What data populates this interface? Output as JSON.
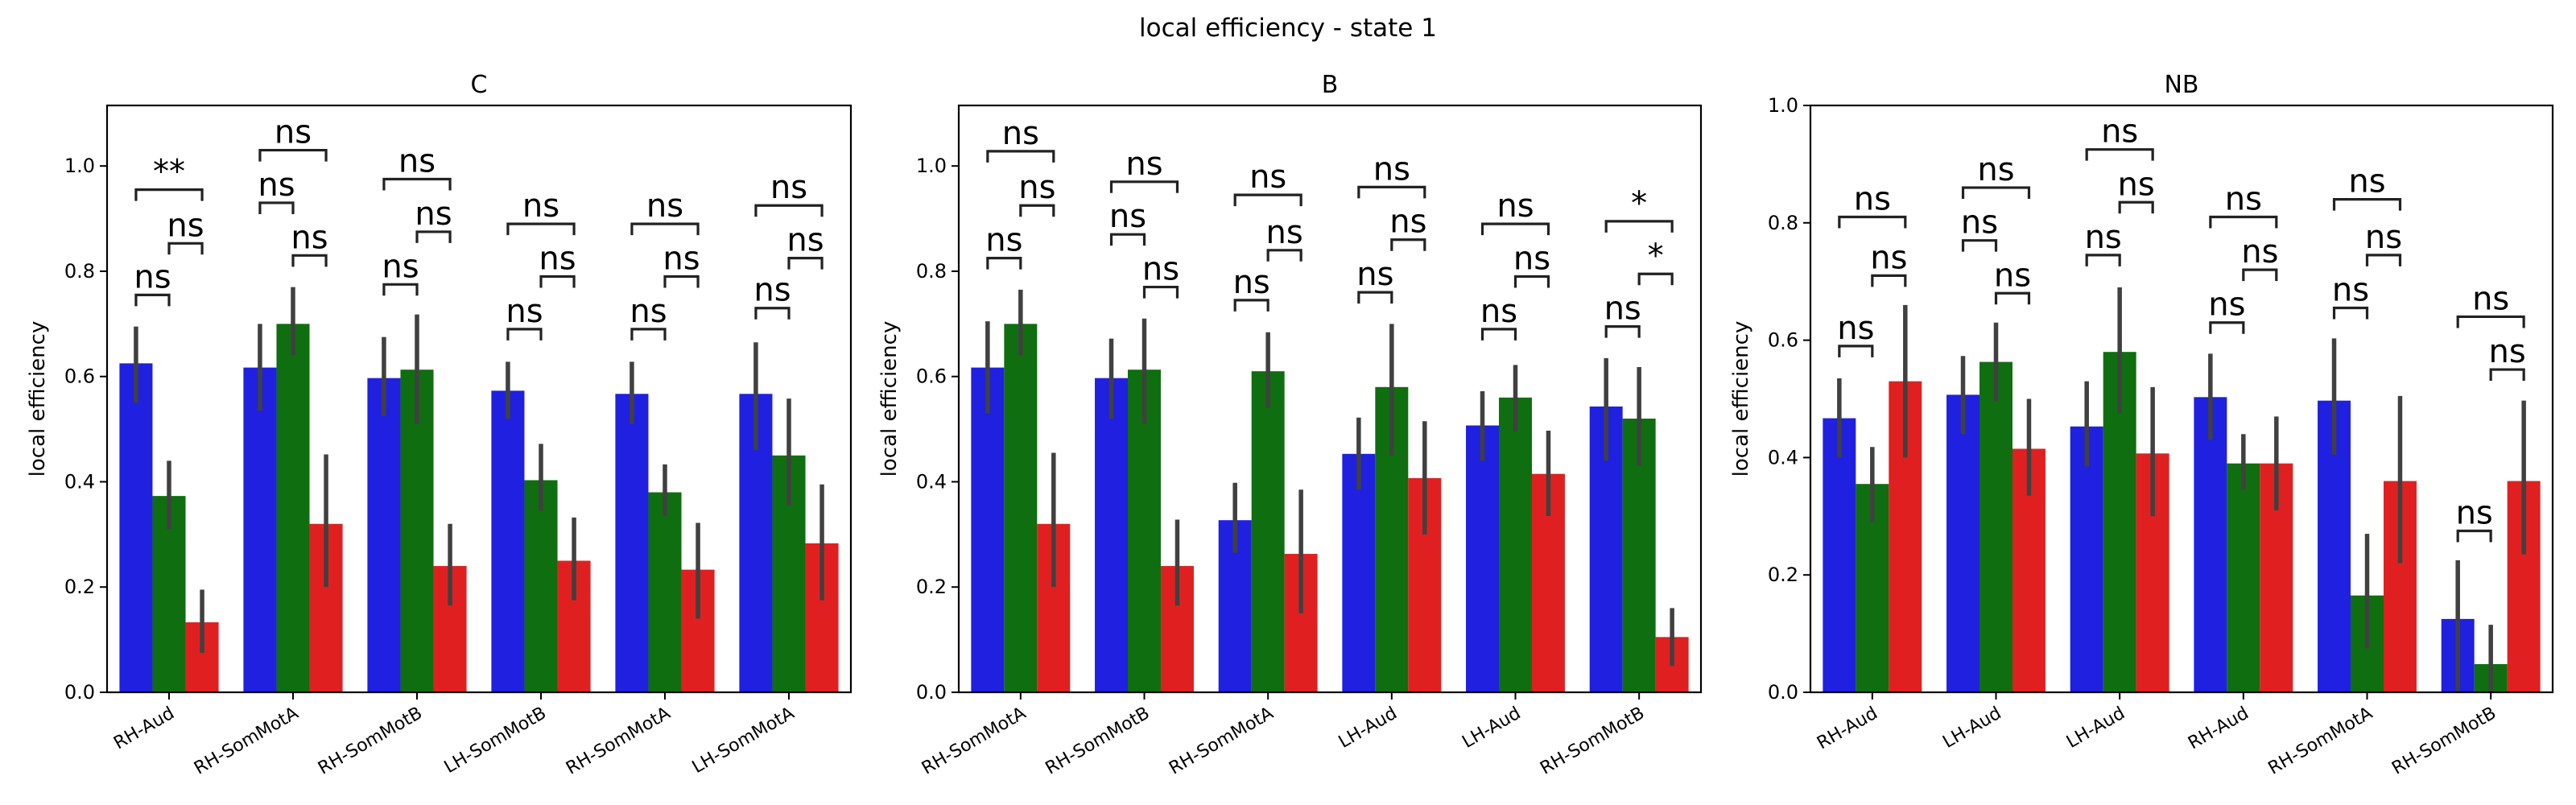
{
  "title": "local efficiency - state 1",
  "colors": {
    "series1": "#2020e0",
    "series2": "#0f6e0f",
    "series3": "#e02020",
    "error": "#404040"
  },
  "chart_data": [
    {
      "type": "bar",
      "title": "C",
      "xlabel": "",
      "ylabel": "local efficiency",
      "ylim": [
        0,
        1.115
      ],
      "yticks": [
        0.0,
        0.2,
        0.4,
        0.6,
        0.8,
        1.0
      ],
      "ytick_labels": [
        "0.0",
        "0.2",
        "0.4",
        "0.6",
        "0.8",
        "1.0"
      ],
      "categories": [
        "RH-Aud",
        "RH-SomMotA",
        "RH-SomMotB",
        "LH-SomMotB",
        "RH-SomMotA",
        "LH-SomMotA"
      ],
      "series": [
        {
          "values": [
            0.625,
            0.617,
            0.597,
            0.573,
            0.567,
            0.567
          ],
          "err_low": [
            0.55,
            0.535,
            0.525,
            0.52,
            0.51,
            0.46
          ],
          "err_high": [
            0.695,
            0.7,
            0.675,
            0.628,
            0.628,
            0.665
          ]
        },
        {
          "values": [
            0.373,
            0.7,
            0.613,
            0.403,
            0.38,
            0.45
          ],
          "err_low": [
            0.31,
            0.64,
            0.51,
            0.345,
            0.335,
            0.355
          ],
          "err_high": [
            0.44,
            0.77,
            0.718,
            0.472,
            0.433,
            0.558
          ]
        },
        {
          "values": [
            0.133,
            0.32,
            0.24,
            0.25,
            0.233,
            0.283
          ],
          "err_low": [
            0.075,
            0.2,
            0.165,
            0.175,
            0.14,
            0.175
          ],
          "err_high": [
            0.195,
            0.452,
            0.32,
            0.332,
            0.322,
            0.395
          ]
        }
      ],
      "annotations": [
        {
          "group": 0,
          "from": 0,
          "to": 1,
          "y": 0.755,
          "text": "ns"
        },
        {
          "group": 0,
          "from": 1,
          "to": 2,
          "y": 0.853,
          "text": "ns"
        },
        {
          "group": 0,
          "from": 0,
          "to": 2,
          "y": 0.955,
          "text": "**"
        },
        {
          "group": 1,
          "from": 0,
          "to": 1,
          "y": 0.93,
          "text": "ns"
        },
        {
          "group": 1,
          "from": 1,
          "to": 2,
          "y": 0.83,
          "text": "ns"
        },
        {
          "group": 1,
          "from": 0,
          "to": 2,
          "y": 1.03,
          "text": "ns"
        },
        {
          "group": 2,
          "from": 0,
          "to": 1,
          "y": 0.775,
          "text": "ns"
        },
        {
          "group": 2,
          "from": 1,
          "to": 2,
          "y": 0.875,
          "text": "ns"
        },
        {
          "group": 2,
          "from": 0,
          "to": 2,
          "y": 0.975,
          "text": "ns"
        },
        {
          "group": 3,
          "from": 0,
          "to": 1,
          "y": 0.69,
          "text": "ns"
        },
        {
          "group": 3,
          "from": 1,
          "to": 2,
          "y": 0.79,
          "text": "ns"
        },
        {
          "group": 3,
          "from": 0,
          "to": 2,
          "y": 0.89,
          "text": "ns"
        },
        {
          "group": 4,
          "from": 0,
          "to": 1,
          "y": 0.69,
          "text": "ns"
        },
        {
          "group": 4,
          "from": 1,
          "to": 2,
          "y": 0.79,
          "text": "ns"
        },
        {
          "group": 4,
          "from": 0,
          "to": 2,
          "y": 0.89,
          "text": "ns"
        },
        {
          "group": 5,
          "from": 0,
          "to": 1,
          "y": 0.73,
          "text": "ns"
        },
        {
          "group": 5,
          "from": 1,
          "to": 2,
          "y": 0.825,
          "text": "ns"
        },
        {
          "group": 5,
          "from": 0,
          "to": 2,
          "y": 0.925,
          "text": "ns"
        }
      ]
    },
    {
      "type": "bar",
      "title": "B",
      "xlabel": "",
      "ylabel": "local efficiency",
      "ylim": [
        0,
        1.115
      ],
      "yticks": [
        0.0,
        0.2,
        0.4,
        0.6,
        0.8,
        1.0
      ],
      "ytick_labels": [
        "0.0",
        "0.2",
        "0.4",
        "0.6",
        "0.8",
        "1.0"
      ],
      "categories": [
        "RH-SomMotA",
        "RH-SomMotB",
        "RH-SomMotA",
        "LH-Aud",
        "LH-Aud",
        "RH-SomMotB"
      ],
      "series": [
        {
          "values": [
            0.617,
            0.597,
            0.327,
            0.453,
            0.507,
            0.543
          ],
          "err_low": [
            0.53,
            0.52,
            0.265,
            0.385,
            0.44,
            0.44
          ],
          "err_high": [
            0.705,
            0.672,
            0.398,
            0.522,
            0.572,
            0.635
          ]
        },
        {
          "values": [
            0.7,
            0.613,
            0.61,
            0.58,
            0.56,
            0.52
          ],
          "err_low": [
            0.64,
            0.51,
            0.54,
            0.45,
            0.495,
            0.43
          ],
          "err_high": [
            0.765,
            0.71,
            0.684,
            0.7,
            0.622,
            0.618
          ]
        },
        {
          "values": [
            0.32,
            0.24,
            0.263,
            0.407,
            0.415,
            0.105
          ],
          "err_low": [
            0.2,
            0.165,
            0.15,
            0.3,
            0.335,
            0.05
          ],
          "err_high": [
            0.455,
            0.328,
            0.385,
            0.515,
            0.497,
            0.16
          ]
        }
      ],
      "annotations": [
        {
          "group": 0,
          "from": 0,
          "to": 1,
          "y": 0.825,
          "text": "ns"
        },
        {
          "group": 0,
          "from": 1,
          "to": 2,
          "y": 0.925,
          "text": "ns"
        },
        {
          "group": 0,
          "from": 0,
          "to": 2,
          "y": 1.028,
          "text": "ns"
        },
        {
          "group": 1,
          "from": 0,
          "to": 1,
          "y": 0.87,
          "text": "ns"
        },
        {
          "group": 1,
          "from": 1,
          "to": 2,
          "y": 0.77,
          "text": "ns"
        },
        {
          "group": 1,
          "from": 0,
          "to": 2,
          "y": 0.97,
          "text": "ns"
        },
        {
          "group": 2,
          "from": 0,
          "to": 1,
          "y": 0.745,
          "text": "ns"
        },
        {
          "group": 2,
          "from": 1,
          "to": 2,
          "y": 0.84,
          "text": "ns"
        },
        {
          "group": 2,
          "from": 0,
          "to": 2,
          "y": 0.945,
          "text": "ns"
        },
        {
          "group": 3,
          "from": 0,
          "to": 1,
          "y": 0.76,
          "text": "ns"
        },
        {
          "group": 3,
          "from": 1,
          "to": 2,
          "y": 0.86,
          "text": "ns"
        },
        {
          "group": 3,
          "from": 0,
          "to": 2,
          "y": 0.96,
          "text": "ns"
        },
        {
          "group": 4,
          "from": 0,
          "to": 1,
          "y": 0.69,
          "text": "ns"
        },
        {
          "group": 4,
          "from": 1,
          "to": 2,
          "y": 0.79,
          "text": "ns"
        },
        {
          "group": 4,
          "from": 0,
          "to": 2,
          "y": 0.89,
          "text": "ns"
        },
        {
          "group": 5,
          "from": 0,
          "to": 1,
          "y": 0.695,
          "text": "ns"
        },
        {
          "group": 5,
          "from": 1,
          "to": 2,
          "y": 0.795,
          "text": "*"
        },
        {
          "group": 5,
          "from": 0,
          "to": 2,
          "y": 0.895,
          "text": "*"
        }
      ]
    },
    {
      "type": "bar",
      "title": "NB",
      "xlabel": "",
      "ylabel": "local efficiency",
      "ylim": [
        0,
        1.0
      ],
      "yticks": [
        0.0,
        0.2,
        0.4,
        0.6,
        0.8,
        1.0
      ],
      "ytick_labels": [
        "0.0",
        "0.2",
        "0.4",
        "0.6",
        "0.8",
        "1.0"
      ],
      "categories": [
        "RH-Aud",
        "LH-Aud",
        "LH-Aud",
        "RH-Aud",
        "RH-SomMotA",
        "RH-SomMotB"
      ],
      "series": [
        {
          "values": [
            0.467,
            0.507,
            0.453,
            0.503,
            0.497,
            0.125
          ],
          "err_low": [
            0.4,
            0.44,
            0.385,
            0.43,
            0.405,
            0.0
          ],
          "err_high": [
            0.535,
            0.573,
            0.53,
            0.577,
            0.603,
            0.225
          ]
        },
        {
          "values": [
            0.355,
            0.563,
            0.58,
            0.39,
            0.165,
            0.048
          ],
          "err_low": [
            0.29,
            0.495,
            0.475,
            0.345,
            0.075,
            0.0
          ],
          "err_high": [
            0.418,
            0.63,
            0.69,
            0.44,
            0.27,
            0.115
          ]
        },
        {
          "values": [
            0.53,
            0.415,
            0.407,
            0.39,
            0.36,
            0.36
          ],
          "err_low": [
            0.4,
            0.335,
            0.3,
            0.31,
            0.22,
            0.235
          ],
          "err_high": [
            0.66,
            0.5,
            0.52,
            0.47,
            0.505,
            0.497
          ]
        }
      ],
      "annotations": [
        {
          "group": 0,
          "from": 0,
          "to": 1,
          "y": 0.59,
          "text": "ns"
        },
        {
          "group": 0,
          "from": 1,
          "to": 2,
          "y": 0.71,
          "text": "ns"
        },
        {
          "group": 0,
          "from": 0,
          "to": 2,
          "y": 0.81,
          "text": "ns"
        },
        {
          "group": 1,
          "from": 0,
          "to": 1,
          "y": 0.77,
          "text": "ns"
        },
        {
          "group": 1,
          "from": 1,
          "to": 2,
          "y": 0.68,
          "text": "ns"
        },
        {
          "group": 1,
          "from": 0,
          "to": 2,
          "y": 0.86,
          "text": "ns"
        },
        {
          "group": 2,
          "from": 0,
          "to": 1,
          "y": 0.745,
          "text": "ns"
        },
        {
          "group": 2,
          "from": 1,
          "to": 2,
          "y": 0.835,
          "text": "ns"
        },
        {
          "group": 2,
          "from": 0,
          "to": 2,
          "y": 0.925,
          "text": "ns"
        },
        {
          "group": 3,
          "from": 0,
          "to": 1,
          "y": 0.63,
          "text": "ns"
        },
        {
          "group": 3,
          "from": 1,
          "to": 2,
          "y": 0.72,
          "text": "ns"
        },
        {
          "group": 3,
          "from": 0,
          "to": 2,
          "y": 0.81,
          "text": "ns"
        },
        {
          "group": 4,
          "from": 0,
          "to": 1,
          "y": 0.655,
          "text": "ns"
        },
        {
          "group": 4,
          "from": 1,
          "to": 2,
          "y": 0.745,
          "text": "ns"
        },
        {
          "group": 4,
          "from": 0,
          "to": 2,
          "y": 0.84,
          "text": "ns"
        },
        {
          "group": 5,
          "from": 0,
          "to": 1,
          "y": 0.275,
          "text": "ns"
        },
        {
          "group": 5,
          "from": 1,
          "to": 2,
          "y": 0.55,
          "text": "ns"
        },
        {
          "group": 5,
          "from": 0,
          "to": 2,
          "y": 0.64,
          "text": "ns"
        }
      ]
    }
  ]
}
